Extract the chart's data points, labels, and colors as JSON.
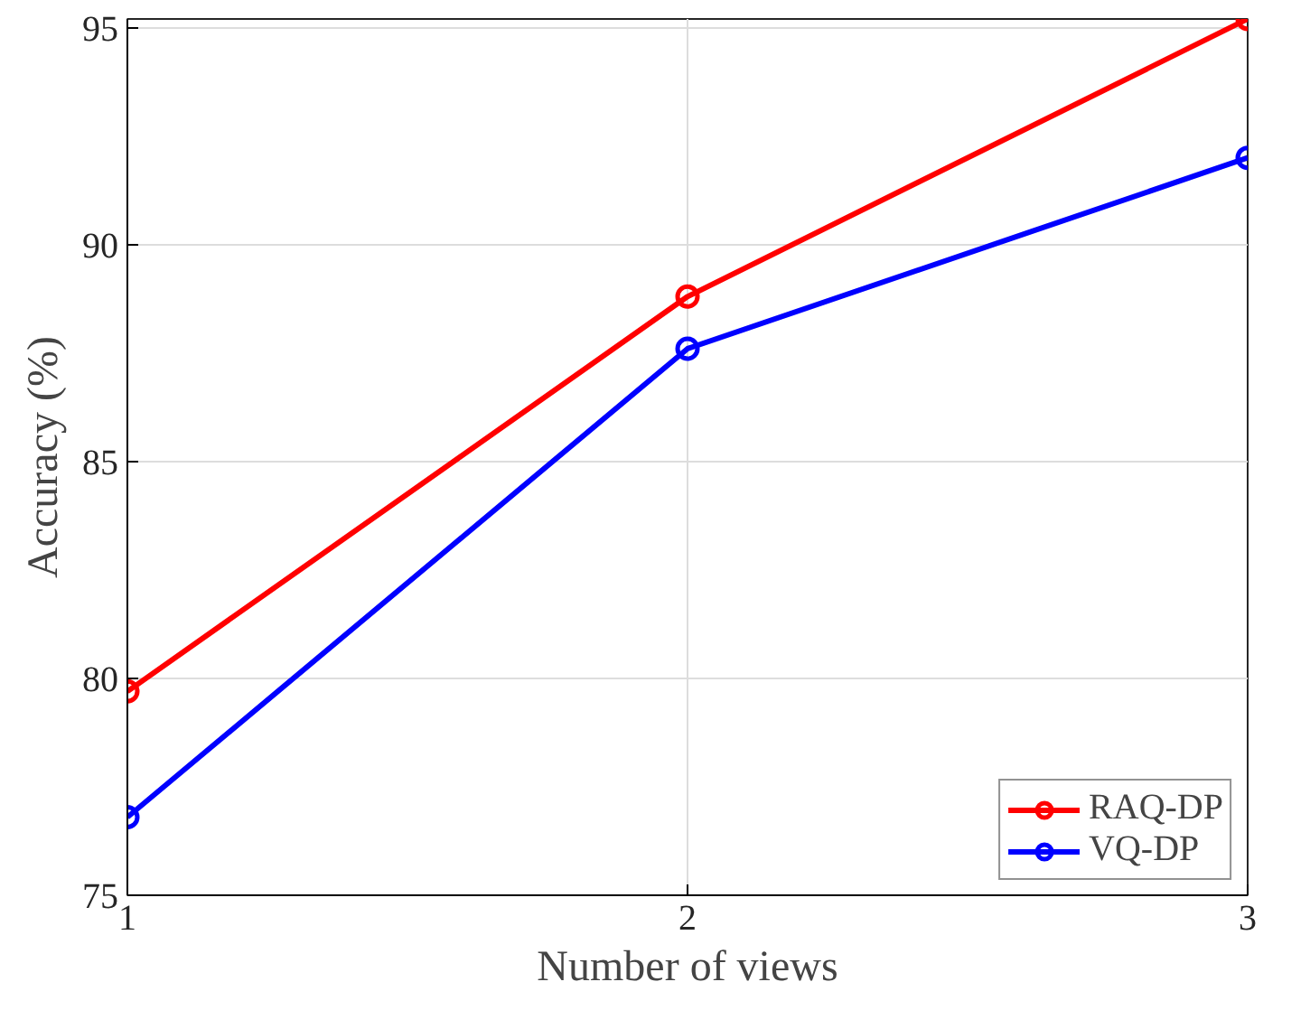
{
  "chart_data": {
    "type": "line",
    "xlabel": "Number of views",
    "ylabel": "Accuracy (%)",
    "x": [
      1,
      2,
      3
    ],
    "xlim": [
      1,
      3
    ],
    "xticks": [
      1,
      2,
      3
    ],
    "ylim": [
      75,
      95.2
    ],
    "yticks": [
      75,
      80,
      85,
      90,
      95
    ],
    "series": [
      {
        "name": "RAQ-DP",
        "color": "#ff0000",
        "values": [
          79.7,
          88.8,
          95.2
        ]
      },
      {
        "name": "VQ-DP",
        "color": "#0000ff",
        "values": [
          76.8,
          87.6,
          92.0
        ]
      }
    ],
    "grid": true,
    "legend": "bottom right",
    "marker": "circle",
    "line_style": "solid"
  }
}
